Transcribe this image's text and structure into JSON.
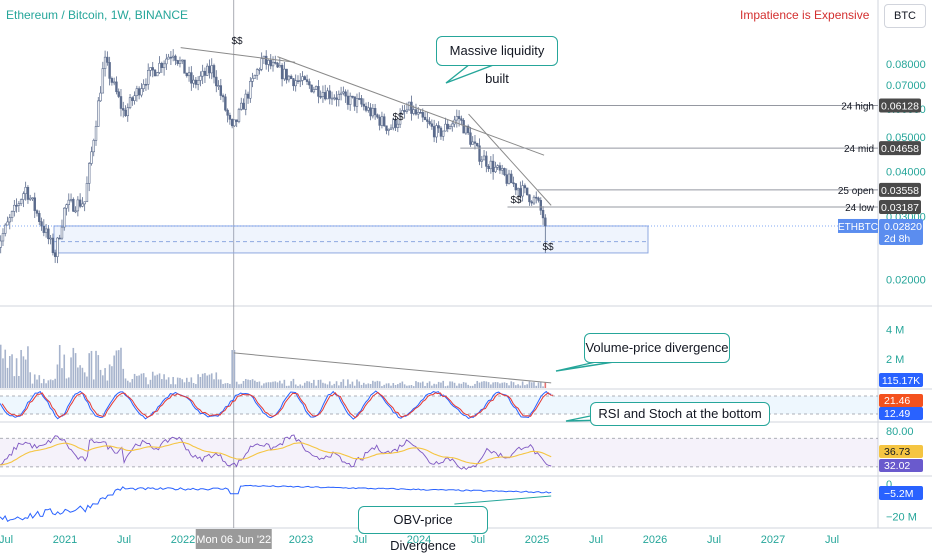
{
  "header": {
    "title": "Ethereum / Bitcoin, 1W, BINANCE",
    "slogan": "Impatience is Expensive",
    "ticker": "BTC"
  },
  "annotations": {
    "liquidity": "Massive liquidity built",
    "volume": "Volume-price divergence",
    "rsi": "RSI and Stoch at the bottom",
    "obv": "OBV-price Divergence",
    "dollar_marks": [
      "$$",
      "$$",
      "$$",
      "$$"
    ]
  },
  "colors": {
    "candle": "#5b6b8c",
    "volume_bar": "#a6b3cc",
    "volume_last": "#e57373",
    "stoch_k": "#2962ff",
    "stoch_d": "#e53935",
    "rsi": "#7e57c2",
    "rsi_ma": "#f5c542",
    "obv": "#2962ff",
    "callout_border": "#26a69a",
    "price_badge": "#5b8def",
    "level_badge": "#4a4a4a"
  },
  "chart_data": {
    "type": "candlestick",
    "symbol": "ETHBTC",
    "timeframe": "1W",
    "x_ticks": [
      "Jul",
      "2021",
      "Jul",
      "2022",
      "Mon 06 Jun '22",
      "2023",
      "Jul",
      "2024",
      "Jul",
      "2025",
      "Jul",
      "2026",
      "Jul",
      "2027",
      "Jul"
    ],
    "price_axis": {
      "scale": "log",
      "ticks": [
        "0.08000",
        "0.07000",
        "0.06000",
        "0.05000",
        "0.04000",
        "0.03000",
        "0.02000"
      ],
      "range": [
        0.0175,
        0.105
      ]
    },
    "price_path": [
      [
        "2020-06",
        0.0245
      ],
      [
        "2020-09",
        0.036
      ],
      [
        "2020-12",
        0.0235
      ],
      [
        "2021-01",
        0.032
      ],
      [
        "2021-03",
        0.033
      ],
      [
        "2021-05",
        0.082
      ],
      [
        "2021-07",
        0.058
      ],
      [
        "2021-09",
        0.072
      ],
      [
        "2021-12",
        0.087
      ],
      [
        "2022-02",
        0.07
      ],
      [
        "2022-04",
        0.078
      ],
      [
        "2022-06",
        0.052
      ],
      [
        "2022-09",
        0.082
      ],
      [
        "2022-12",
        0.073
      ],
      [
        "2023-04",
        0.066
      ],
      [
        "2023-07",
        0.062
      ],
      [
        "2023-10",
        0.053
      ],
      [
        "2023-12",
        0.06
      ],
      [
        "2024-03",
        0.051
      ],
      [
        "2024-05",
        0.057
      ],
      [
        "2024-07",
        0.045
      ],
      [
        "2024-10",
        0.038
      ],
      [
        "2025-01",
        0.033
      ],
      [
        "2025-02",
        0.0282
      ]
    ],
    "levels": [
      {
        "label": "24 high",
        "value": 0.06128
      },
      {
        "label": "24 mid",
        "value": 0.04658
      },
      {
        "label": "25 open",
        "value": 0.03558
      },
      {
        "label": "24 low",
        "value": 0.03187
      }
    ],
    "last_price": {
      "symbol": "ETHBTC",
      "value": 0.0282,
      "text": "0.02820",
      "countdown": "2d 8h"
    },
    "liquidity_zone": [
      0.0237,
      0.0282
    ],
    "volume": {
      "axis_ticks": [
        "4 M",
        "2 M"
      ],
      "last": "115.17K"
    },
    "stoch": {
      "k": 21.46,
      "d": 12.49,
      "k_text": "21.46",
      "d_text": "12.49"
    },
    "rsi": {
      "axis_ticks": [
        "80.00"
      ],
      "value": 36.73,
      "ma": 32.02,
      "value_text": "36.73",
      "ma_text": "32.02"
    },
    "obv": {
      "axis_ticks": [
        "0",
        "−20 M"
      ],
      "last": "−5.2M"
    }
  }
}
